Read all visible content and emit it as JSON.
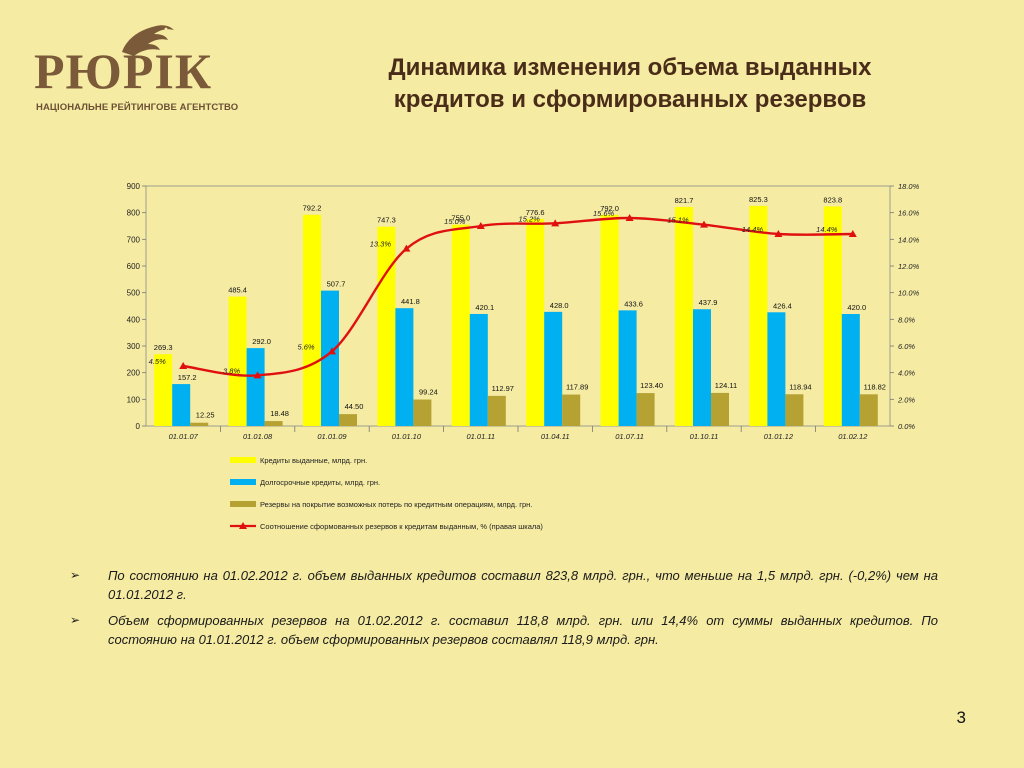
{
  "logo": {
    "wordmark": "РЮРІК",
    "subtitle": "НАЦІОНАЛЬНЕ РЕЙТИНГОВЕ АГЕНТСТВО"
  },
  "title": {
    "line1": "Динамика изменения объема выданных",
    "line2": "кредитов и сформированных резервов"
  },
  "colors": {
    "credits": "#ffff00",
    "longterm": "#00b0f0",
    "reserves": "#b5a232",
    "ratio": "#e01010",
    "title": "#4a2d18"
  },
  "chart_data": {
    "type": "bar",
    "categories": [
      "01.01.07",
      "01.01.08",
      "01.01.09",
      "01.01.10",
      "01.01.11",
      "01.04.11",
      "01.07.11",
      "01.10.11",
      "01.01.12",
      "01.02.12"
    ],
    "series": [
      {
        "name": "Кредиты выданные, млрд. грн.",
        "type": "bar",
        "values": [
          269.3,
          485.4,
          792.2,
          747.3,
          755.0,
          776.6,
          792.0,
          821.7,
          825.3,
          823.8
        ],
        "labels": [
          "269.3",
          "485.4",
          "792.2",
          "747.3",
          "755.0",
          "776.6",
          "792.0",
          "821.7",
          "825.3",
          "823.8"
        ]
      },
      {
        "name": "Долгосрочные кредиты, млрд. грн.",
        "type": "bar",
        "values": [
          157.2,
          292.0,
          507.7,
          441.8,
          420.1,
          428.0,
          433.6,
          437.9,
          426.4,
          420.0
        ],
        "labels": [
          "157.2",
          "292.0",
          "507.7",
          "441.8",
          "420.1",
          "428.0",
          "433.6",
          "437.9",
          "426.4",
          "420.0"
        ]
      },
      {
        "name": "Резервы на покрытие возможных потерь по кредитным операциям, млрд. грн.",
        "type": "bar",
        "values": [
          12.25,
          18.48,
          44.5,
          99.24,
          112.97,
          117.89,
          123.4,
          124.11,
          118.94,
          118.82
        ],
        "labels": [
          "12.25",
          "18.48",
          "44.50",
          "99.24",
          "112.97",
          "117.89",
          "123.40",
          "124.11",
          "118.94",
          "118.82"
        ]
      },
      {
        "name": "Соотношение сформованных резервов к кредитам выданным, % (правая шкала)",
        "type": "line",
        "axis": "right",
        "values": [
          4.5,
          3.8,
          5.6,
          13.3,
          15.0,
          15.2,
          15.6,
          15.1,
          14.4,
          14.4
        ],
        "labels": [
          "4.5%",
          "3.8%",
          "5.6%",
          "13.3%",
          "15.0%",
          "15.2%",
          "15.6%",
          "15.1%",
          "14.4%",
          "14.4%"
        ]
      }
    ],
    "ylim": [
      0,
      900
    ],
    "y_ticks": [
      "0",
      "100",
      "200",
      "300",
      "400",
      "500",
      "600",
      "700",
      "800",
      "900"
    ],
    "y2lim": [
      0,
      18
    ],
    "y2_ticks": [
      "0.0%",
      "2.0%",
      "4.0%",
      "6.0%",
      "8.0%",
      "10.0%",
      "12.0%",
      "14.0%",
      "16.0%",
      "18.0%"
    ],
    "grid": false,
    "legend_position": "bottom"
  },
  "notes": [
    "По состоянию на 01.02.2012 г. объем выданных кредитов составил 823,8 млрд. грн., что  меньше на 1,5 млрд. грн. (-0,2%) чем на 01.01.2012 г.",
    "Объем сформированных резервов на 01.02.2012 г. составил 118,8 млрд. грн. или 14,4% от суммы выданных кредитов. По состоянию на 01.01.2012 г. объем сформированных резервов составлял 118,9 млрд. грн."
  ],
  "bullet_symbol": "➢",
  "page_number": "3"
}
